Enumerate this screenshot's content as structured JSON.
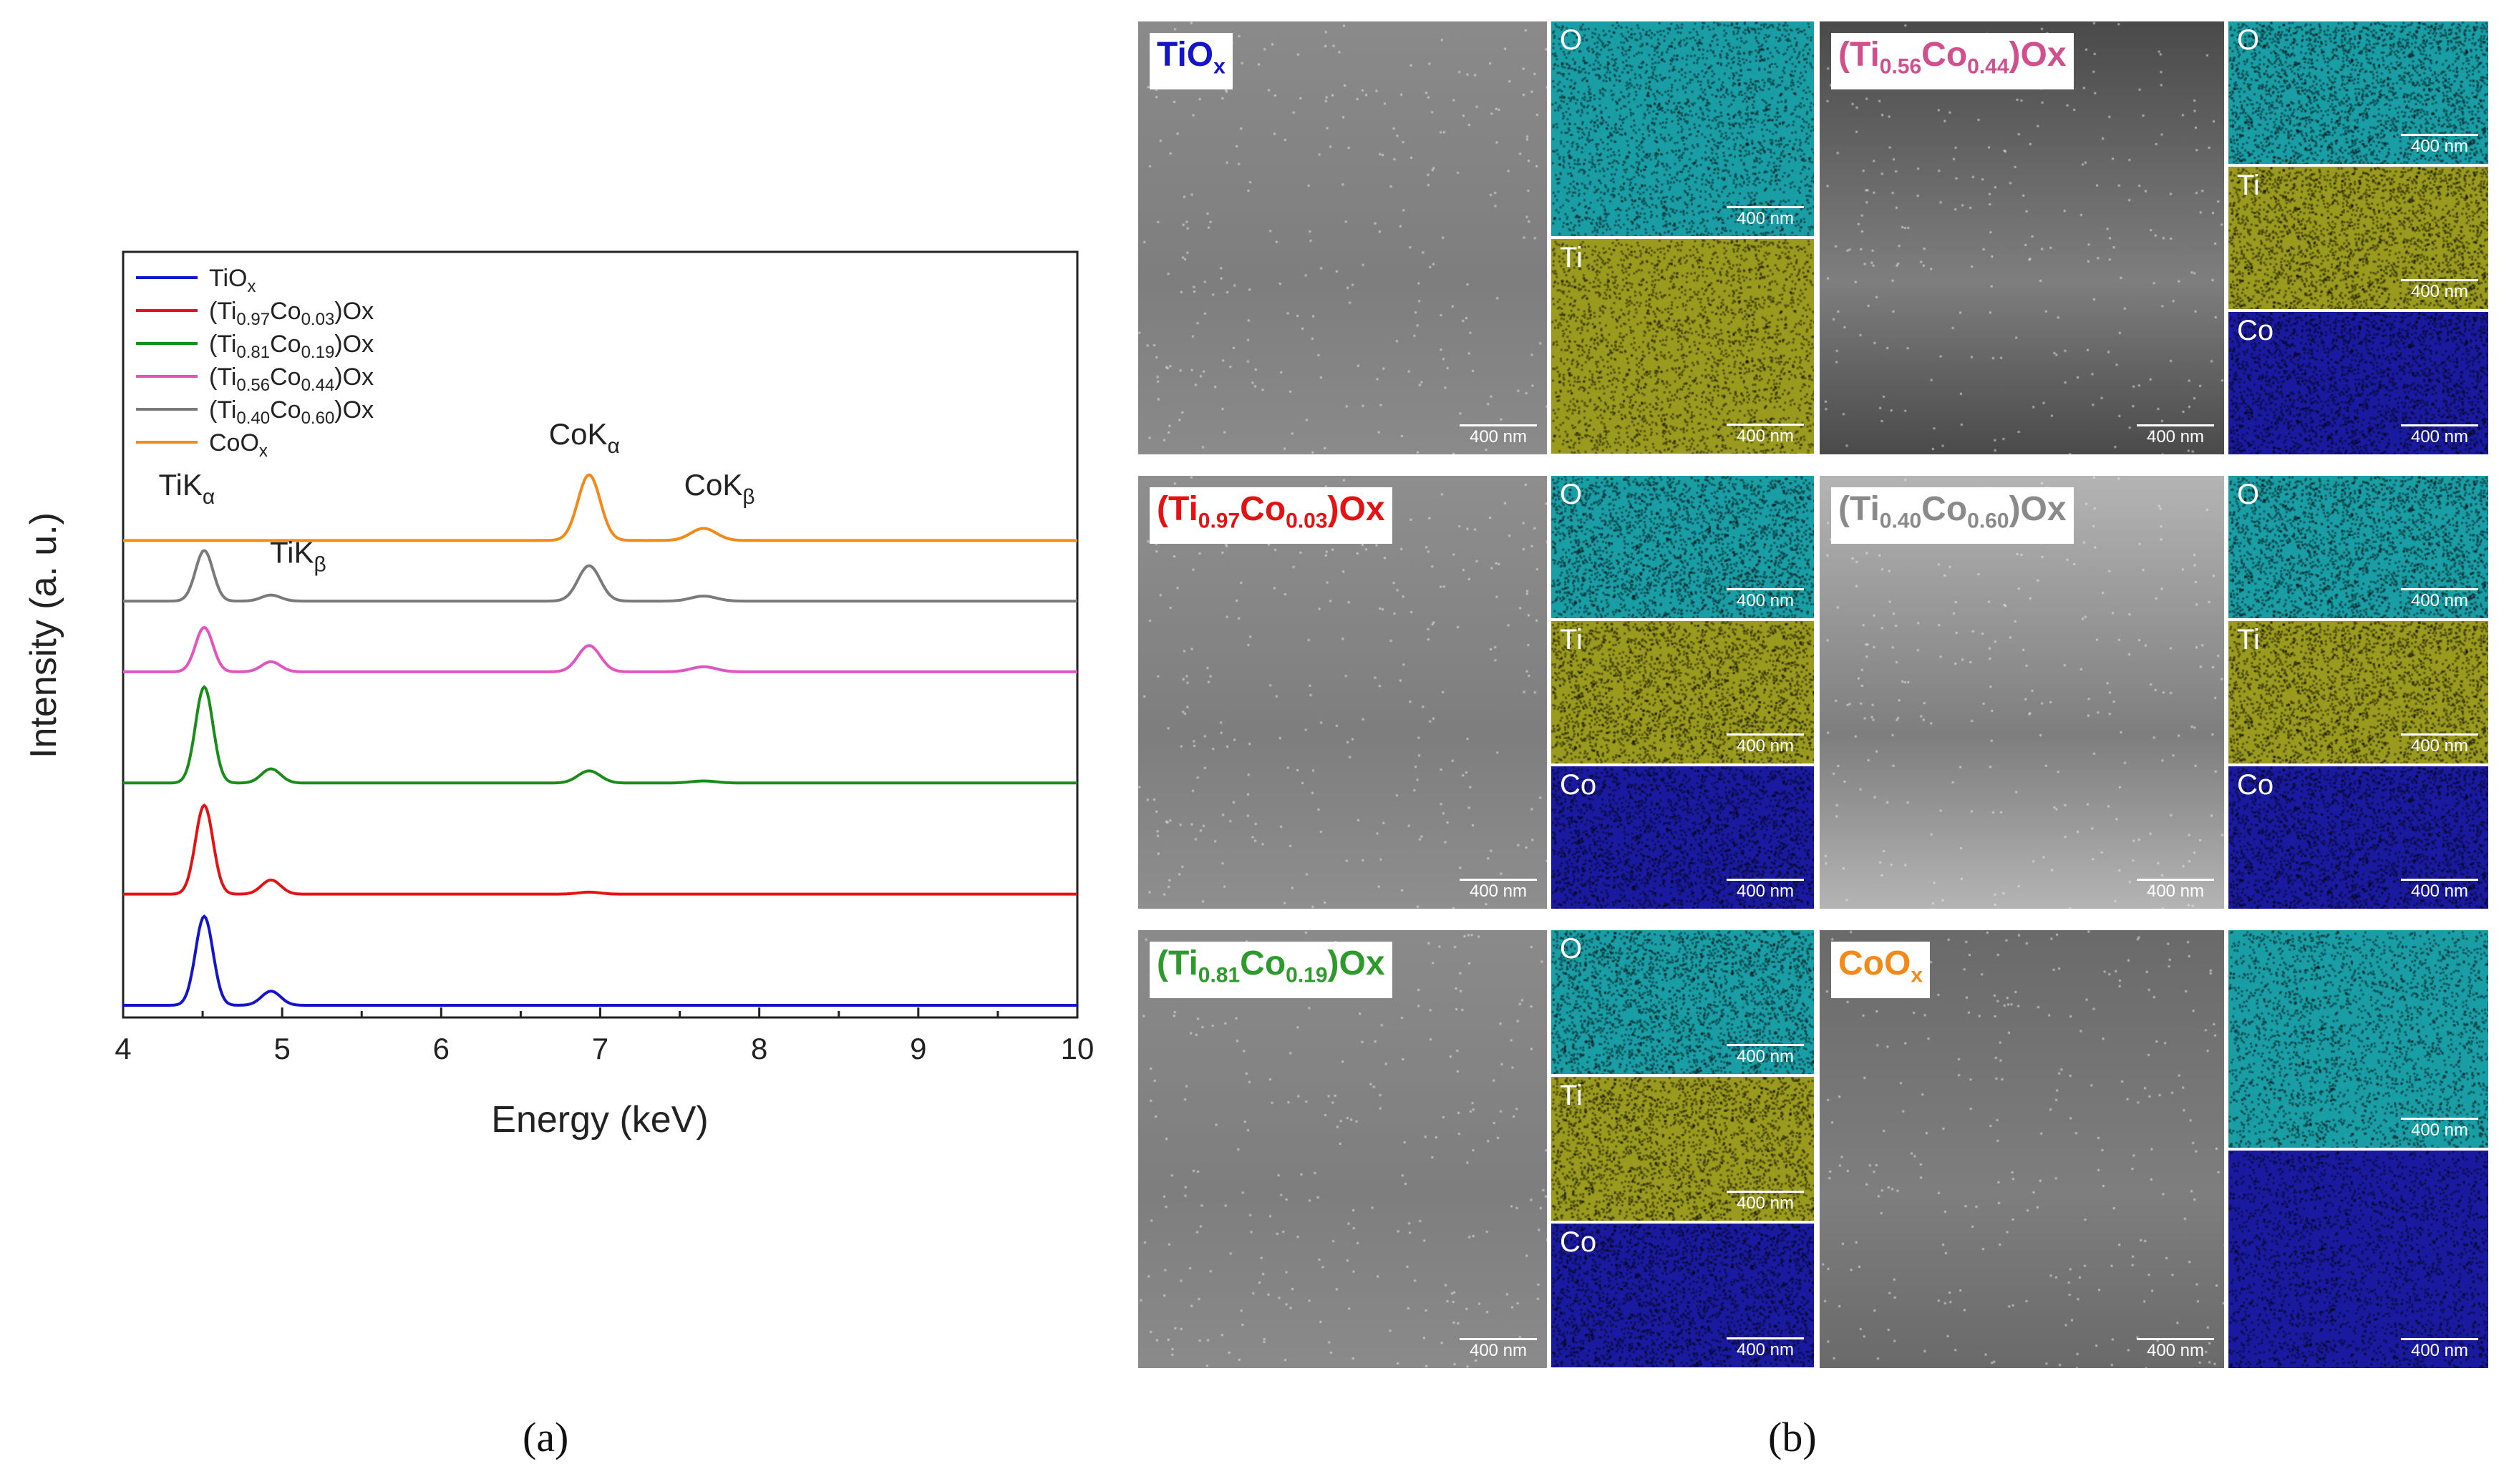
{
  "panel_labels": {
    "a": "(a)",
    "b": "(b)"
  },
  "chart_data": {
    "type": "line",
    "title": "",
    "xlabel": "Energy (keV)",
    "ylabel": "Intensity (a. u.)",
    "xlim": [
      4,
      10
    ],
    "xticks": [
      "4",
      "5",
      "6",
      "7",
      "8",
      "9",
      "10"
    ],
    "grid": false,
    "legend_position": "top-left",
    "series": [
      {
        "name": "TiOx",
        "label_main": "TiO",
        "label_sub": "x",
        "label_tail": "",
        "color": "#1515c8",
        "baseline": 0.0,
        "peaks": [
          [
            4.51,
            0.88,
            0.055
          ],
          [
            4.93,
            0.14,
            0.06
          ]
        ]
      },
      {
        "name": "(Ti0.97Co0.03)Ox",
        "label_main": "(Ti",
        "label_sub": "0.97",
        "label_mid": "Co",
        "label_sub2": "0.03",
        "label_tail": ")Ox",
        "color": "#e01414",
        "baseline": 1.1,
        "peaks": [
          [
            4.51,
            0.88,
            0.055
          ],
          [
            4.93,
            0.14,
            0.06
          ],
          [
            6.93,
            0.02,
            0.07
          ]
        ]
      },
      {
        "name": "(Ti0.81Co0.19)Ox",
        "label_main": "(Ti",
        "label_sub": "0.81",
        "label_mid": "Co",
        "label_sub2": "0.19",
        "label_tail": ")Ox",
        "color": "#1a8c1a",
        "baseline": 2.2,
        "peaks": [
          [
            4.51,
            0.95,
            0.055
          ],
          [
            4.93,
            0.14,
            0.06
          ],
          [
            6.93,
            0.12,
            0.07
          ],
          [
            7.65,
            0.02,
            0.08
          ]
        ]
      },
      {
        "name": "(Ti0.56Co0.44)Ox",
        "label_main": "(Ti",
        "label_sub": "0.56",
        "label_mid": "Co",
        "label_sub2": "0.44",
        "label_tail": ")Ox",
        "color": "#e055c0",
        "baseline": 3.3,
        "peaks": [
          [
            4.51,
            0.44,
            0.055
          ],
          [
            4.93,
            0.1,
            0.06
          ],
          [
            6.93,
            0.26,
            0.07
          ],
          [
            7.65,
            0.05,
            0.08
          ]
        ]
      },
      {
        "name": "(Ti0.40Co0.60)Ox",
        "label_main": "(Ti",
        "label_sub": "0.40",
        "label_mid": "Co",
        "label_sub2": "0.60",
        "label_tail": ")Ox",
        "color": "#7a7a7a",
        "baseline": 4.0,
        "peaks": [
          [
            4.51,
            0.5,
            0.055
          ],
          [
            4.93,
            0.06,
            0.06
          ],
          [
            6.93,
            0.35,
            0.07
          ],
          [
            7.65,
            0.05,
            0.08
          ]
        ]
      },
      {
        "name": "CoOx",
        "label_main": "CoO",
        "label_sub": "x",
        "label_tail": "",
        "color": "#f08a1a",
        "baseline": 4.6,
        "peaks": [
          [
            6.93,
            0.65,
            0.07
          ],
          [
            7.65,
            0.12,
            0.08
          ]
        ]
      }
    ],
    "annotations": [
      {
        "main": "TiK",
        "sub": "α",
        "x": 4.4,
        "y": 5.05
      },
      {
        "main": "TiK",
        "sub": "β",
        "x": 5.1,
        "y": 4.38
      },
      {
        "main": "CoK",
        "sub": "α",
        "x": 6.9,
        "y": 5.55
      },
      {
        "main": "CoK",
        "sub": "β",
        "x": 7.75,
        "y": 5.05
      }
    ]
  },
  "sem_panels": [
    {
      "id": "tiox",
      "label": {
        "main": "TiO",
        "sub": "x",
        "tail": "",
        "color": "#1515c8"
      },
      "sem_scale": "400 nm",
      "maps": [
        {
          "element": "O",
          "color": "#1a9ea6",
          "scale": "400 nm"
        },
        {
          "element": "Ti",
          "color": "#9a9a1e",
          "scale": "400 nm"
        }
      ]
    },
    {
      "id": "ti056",
      "label": {
        "main": "(Ti",
        "sub": "0.56",
        "mid": "Co",
        "sub2": "0.44",
        "tail": ")Ox",
        "color": "#d0508e"
      },
      "sem_scale": "400 nm",
      "maps": [
        {
          "element": "O",
          "color": "#1a9ea6",
          "scale": "400 nm"
        },
        {
          "element": "Ti",
          "color": "#9a9a1e",
          "scale": "400 nm"
        },
        {
          "element": "Co",
          "color": "#1a1aa0",
          "scale": "400 nm"
        }
      ]
    },
    {
      "id": "ti097",
      "label": {
        "main": "(Ti",
        "sub": "0.97",
        "mid": "Co",
        "sub2": "0.03",
        "tail": ")Ox",
        "color": "#e01414"
      },
      "sem_scale": "400 nm",
      "maps": [
        {
          "element": "O",
          "color": "#1a9ea6",
          "scale": "400 nm"
        },
        {
          "element": "Ti",
          "color": "#9a9a1e",
          "scale": "400 nm"
        },
        {
          "element": "Co",
          "color": "#1a1aa0",
          "scale": "400 nm"
        }
      ]
    },
    {
      "id": "ti040",
      "label": {
        "main": "(Ti",
        "sub": "0.40",
        "mid": "Co",
        "sub2": "0.60",
        "tail": ")Ox",
        "color": "#8a8a8a"
      },
      "sem_scale": "400 nm",
      "maps": [
        {
          "element": "O",
          "color": "#1a9ea6",
          "scale": "400 nm"
        },
        {
          "element": "Ti",
          "color": "#9a9a1e",
          "scale": "400 nm"
        },
        {
          "element": "Co",
          "color": "#1a1aa0",
          "scale": "400 nm"
        }
      ]
    },
    {
      "id": "ti081",
      "label": {
        "main": "(Ti",
        "sub": "0.81",
        "mid": "Co",
        "sub2": "0.19",
        "tail": ")Ox",
        "color": "#2e9a2e"
      },
      "sem_scale": "400 nm",
      "maps": [
        {
          "element": "O",
          "color": "#1a9ea6",
          "scale": "400 nm"
        },
        {
          "element": "Ti",
          "color": "#9a9a1e",
          "scale": "400 nm"
        },
        {
          "element": "Co",
          "color": "#1a1aa0",
          "scale": "400 nm"
        }
      ]
    },
    {
      "id": "coox",
      "label": {
        "main": "CoO",
        "sub": "x",
        "tail": "",
        "color": "#f08a1a"
      },
      "sem_scale": "400 nm",
      "maps": [
        {
          "element": "",
          "color": "#1a9ea6",
          "scale": "400 nm"
        },
        {
          "element": "",
          "color": "#1a1aa0",
          "scale": "400 nm"
        }
      ]
    }
  ]
}
